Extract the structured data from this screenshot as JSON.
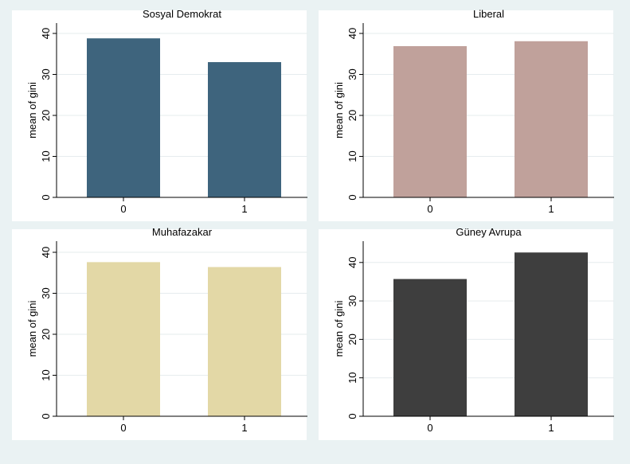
{
  "chart_data": [
    {
      "type": "bar",
      "title": "Sosyal Demokrat",
      "categories": [
        "0",
        "1"
      ],
      "values": [
        38.8,
        33.0
      ],
      "ylabel": "mean of gini",
      "xlabel": "",
      "ylim": [
        0,
        40
      ],
      "yticks": [
        "0",
        "10",
        "20",
        "30",
        "40"
      ],
      "color": "#3e647d",
      "grid": true
    },
    {
      "type": "bar",
      "title": "Liberal",
      "categories": [
        "0",
        "1"
      ],
      "values": [
        36.9,
        38.1
      ],
      "ylabel": "mean of gini",
      "xlabel": "",
      "ylim": [
        0,
        40
      ],
      "yticks": [
        "0",
        "10",
        "20",
        "30",
        "40"
      ],
      "color": "#c0a19b",
      "grid": true
    },
    {
      "type": "bar",
      "title": "Muhafazakar",
      "categories": [
        "0",
        "1"
      ],
      "values": [
        37.6,
        36.4
      ],
      "ylabel": "mean of gini",
      "xlabel": "",
      "ylim": [
        0,
        40
      ],
      "yticks": [
        "0",
        "10",
        "20",
        "30",
        "40"
      ],
      "color": "#e3d8a6",
      "grid": true
    },
    {
      "type": "bar",
      "title": "Güney Avrupa",
      "categories": [
        "0",
        "1"
      ],
      "values": [
        35.7,
        42.6
      ],
      "ylabel": "mean of gini",
      "xlabel": "",
      "ylim": [
        0,
        40
      ],
      "yticks": [
        "0",
        "10",
        "20",
        "30",
        "40"
      ],
      "color": "#3e3e3e",
      "grid": true
    }
  ]
}
